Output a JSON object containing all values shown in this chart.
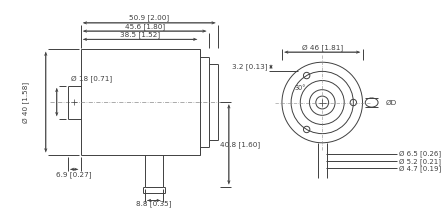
{
  "bg_color": "#ffffff",
  "line_color": "#404040",
  "text_color": "#404040",
  "figsize": [
    4.41,
    2.16
  ],
  "dpi": 100,
  "dims": {
    "d50_9": "50.9 [2.00]",
    "d45_6": "45.6 [1.80]",
    "d38_5": "38.5 [1.52]",
    "d40": "Ø 40 [1.58]",
    "d18": "Ø 18 [0.71]",
    "d6_9": "6.9 [0.27]",
    "d40_8": "40.8 [1.60]",
    "d8_8": "8.8 [0.35]",
    "d3_2": "3.2 [0.13]",
    "d46": "Ø 46 [1.81]",
    "d30": "30°",
    "dD": "ØD",
    "d6_5": "Ø 6.5 [0.26]",
    "d5_2": "Ø 5.2 [0.21]",
    "d4_7": "Ø 4.7 [0.19]"
  }
}
